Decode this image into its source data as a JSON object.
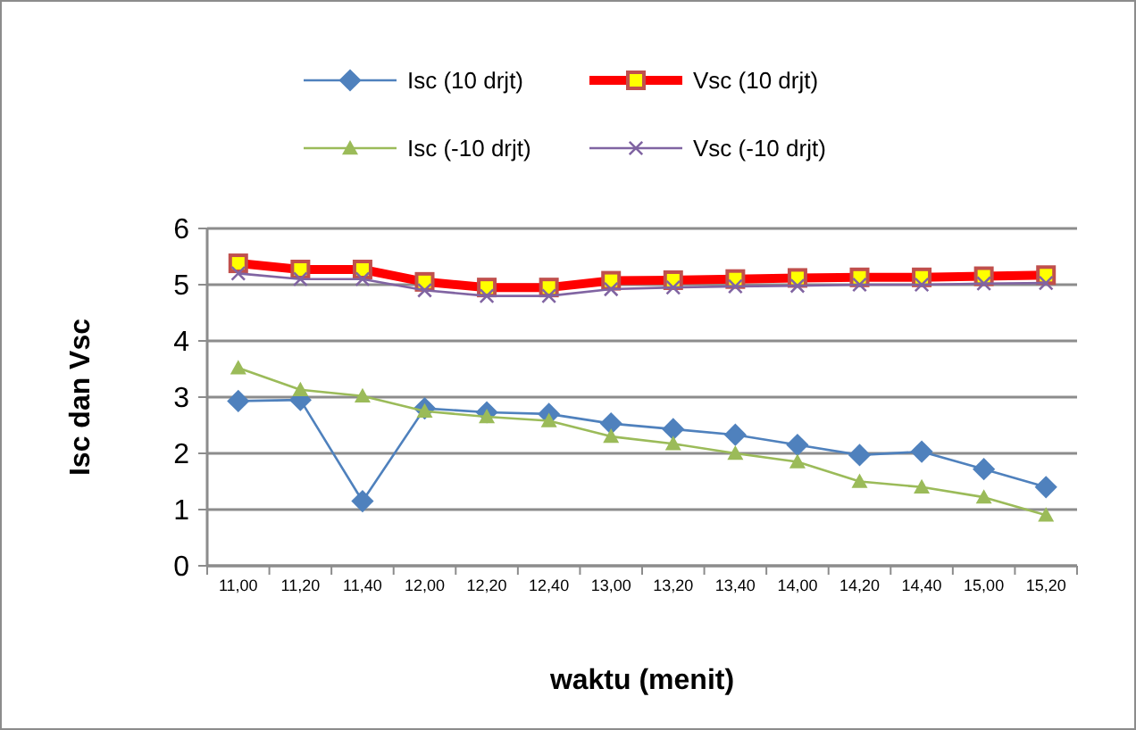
{
  "chart_data": {
    "type": "line",
    "xlabel": "waktu (menit)",
    "ylabel": "Isc dan Vsc",
    "categories": [
      "11,00",
      "11,20",
      "11,40",
      "12,00",
      "12,20",
      "12,40",
      "13,00",
      "13,20",
      "13,40",
      "14,00",
      "14,20",
      "14,40",
      "15,00",
      "15,20"
    ],
    "series": [
      {
        "name": "Isc (10 drjt)",
        "color": "#4f81bd",
        "marker": "diamond",
        "values": [
          2.93,
          2.95,
          1.15,
          2.8,
          2.73,
          2.7,
          2.53,
          2.43,
          2.33,
          2.15,
          1.97,
          2.03,
          1.72,
          1.4
        ]
      },
      {
        "name": "Vsc (10 drjt)",
        "color": "#ff0000",
        "marker": "square",
        "values": [
          5.38,
          5.27,
          5.27,
          5.05,
          4.95,
          4.95,
          5.07,
          5.08,
          5.1,
          5.12,
          5.13,
          5.13,
          5.15,
          5.17
        ]
      },
      {
        "name": "Isc (-10 drjt)",
        "color": "#9bbb59",
        "marker": "triangle",
        "values": [
          3.52,
          3.13,
          3.02,
          2.75,
          2.65,
          2.58,
          2.3,
          2.17,
          2.0,
          1.85,
          1.5,
          1.4,
          1.22,
          0.9
        ]
      },
      {
        "name": "Vsc (-10 drjt)",
        "color": "#8064a2",
        "marker": "cross",
        "values": [
          5.2,
          5.1,
          5.1,
          4.9,
          4.8,
          4.8,
          4.92,
          4.95,
          4.97,
          4.98,
          5.0,
          5.0,
          5.02,
          5.03
        ]
      }
    ],
    "ylim": [
      0,
      6
    ],
    "yticks": [
      0,
      1,
      2,
      3,
      4,
      5,
      6
    ],
    "grid": "y",
    "legend": "top",
    "line_style": "solid"
  }
}
